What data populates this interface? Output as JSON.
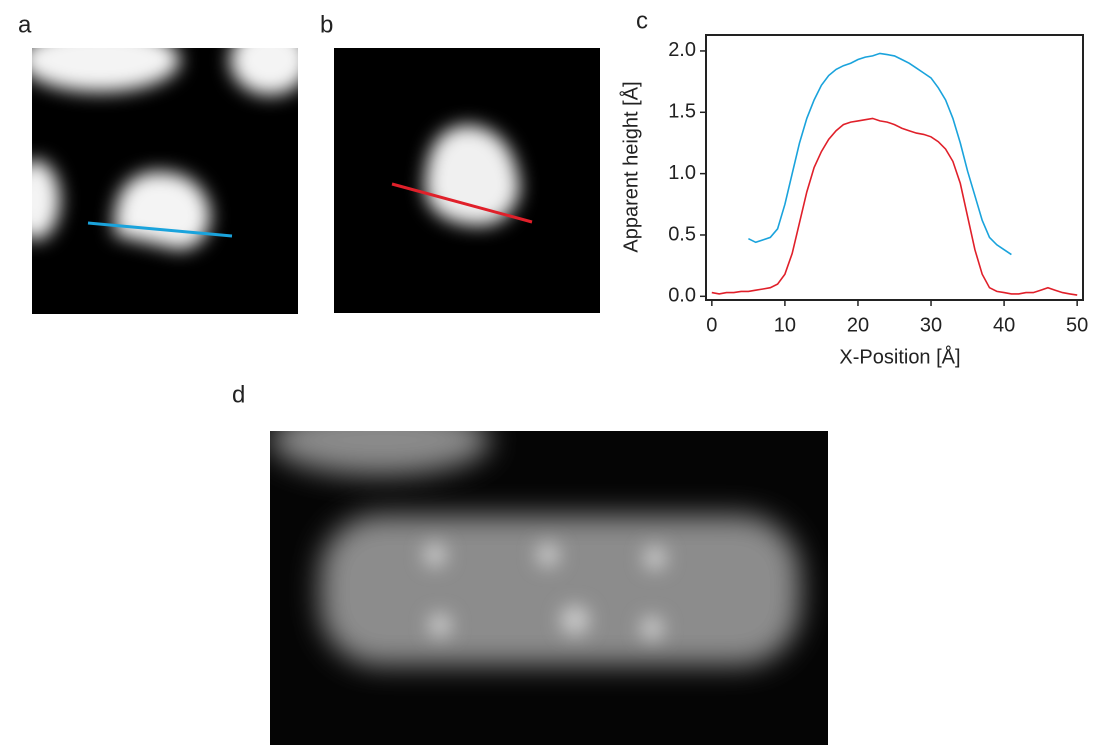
{
  "panel_labels": [
    "a",
    "b",
    "c",
    "d"
  ],
  "chart_data": {
    "type": "line",
    "xlabel": "X-Position [Å]",
    "ylabel": "Apparent height  [Å]",
    "xlim": [
      -0.8,
      50.8
    ],
    "ylim": [
      -0.03,
      2.13
    ],
    "xticks": [
      0,
      10,
      20,
      30,
      40,
      50
    ],
    "yticks": [
      {
        "value": 0,
        "label": "0.0"
      },
      {
        "value": 0.5,
        "label": "0.5"
      },
      {
        "value": 1,
        "label": "1.0"
      },
      {
        "value": 1.5,
        "label": "1.5"
      },
      {
        "value": 2,
        "label": "2.0"
      }
    ],
    "series": [
      {
        "color": "#1aa3dc",
        "x": [
          5,
          6,
          7,
          8,
          9,
          10,
          11,
          12,
          13,
          14,
          15,
          16,
          17,
          18,
          19,
          20,
          21,
          22,
          23,
          24,
          25,
          26,
          27,
          28,
          29,
          30,
          31,
          32,
          33,
          34,
          35,
          36,
          37,
          38,
          39,
          40,
          41
        ],
        "values": [
          0.47,
          0.44,
          0.46,
          0.48,
          0.55,
          0.75,
          1.0,
          1.25,
          1.45,
          1.6,
          1.72,
          1.8,
          1.85,
          1.88,
          1.9,
          1.93,
          1.95,
          1.96,
          1.98,
          1.97,
          1.96,
          1.93,
          1.9,
          1.86,
          1.82,
          1.78,
          1.7,
          1.6,
          1.45,
          1.25,
          1.02,
          0.82,
          0.62,
          0.48,
          0.42,
          0.38,
          0.34
        ]
      },
      {
        "color": "#e0202a",
        "x": [
          0,
          1,
          2,
          3,
          4,
          5,
          6,
          7,
          8,
          9,
          10,
          11,
          12,
          13,
          14,
          15,
          16,
          17,
          18,
          19,
          20,
          21,
          22,
          23,
          24,
          25,
          26,
          27,
          28,
          29,
          30,
          31,
          32,
          33,
          34,
          35,
          36,
          37,
          38,
          39,
          40,
          41,
          42,
          43,
          44,
          45,
          46,
          47,
          48,
          49,
          50
        ],
        "values": [
          0.03,
          0.02,
          0.03,
          0.03,
          0.04,
          0.04,
          0.05,
          0.06,
          0.07,
          0.1,
          0.18,
          0.35,
          0.6,
          0.85,
          1.05,
          1.18,
          1.28,
          1.35,
          1.4,
          1.42,
          1.43,
          1.44,
          1.45,
          1.43,
          1.42,
          1.4,
          1.37,
          1.35,
          1.33,
          1.32,
          1.3,
          1.26,
          1.2,
          1.1,
          0.92,
          0.65,
          0.38,
          0.18,
          0.07,
          0.04,
          0.03,
          0.02,
          0.02,
          0.03,
          0.03,
          0.05,
          0.07,
          0.05,
          0.03,
          0.02,
          0.01
        ]
      }
    ]
  }
}
